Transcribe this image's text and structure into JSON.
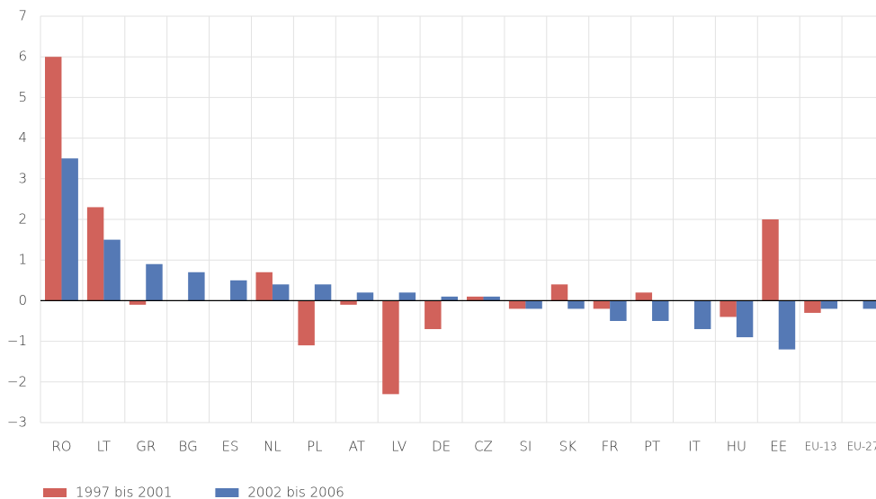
{
  "chart_data": {
    "type": "bar",
    "categories": [
      "RO",
      "LT",
      "GR",
      "BG",
      "ES",
      "NL",
      "PL",
      "AT",
      "LV",
      "DE",
      "CZ",
      "SI",
      "SK",
      "FR",
      "PT",
      "IT",
      "HU",
      "EE",
      "EU-13",
      "EU-27"
    ],
    "series": [
      {
        "name": "1997 bis 2001",
        "color": "#d1625b",
        "values": [
          6.0,
          2.3,
          -0.1,
          0,
          0,
          0.7,
          -1.1,
          -0.1,
          -2.3,
          -0.7,
          0.1,
          -0.2,
          0.4,
          -0.2,
          0.2,
          0,
          -0.4,
          2.0,
          -0.3,
          0
        ]
      },
      {
        "name": "2002 bis 2006",
        "color": "#5579b5",
        "values": [
          3.5,
          1.5,
          0.9,
          0.7,
          0.5,
          0.4,
          0.4,
          0.2,
          0.2,
          0.1,
          0.1,
          -0.2,
          -0.2,
          -0.5,
          -0.5,
          -0.7,
          -0.9,
          -1.2,
          -0.2,
          -0.2
        ]
      }
    ],
    "ylim": [
      -3,
      7
    ],
    "yticks": [
      {
        "value": -3,
        "label": "−3"
      },
      {
        "value": -2,
        "label": "−2"
      },
      {
        "value": -1,
        "label": "−1"
      },
      0,
      1,
      2,
      3,
      4,
      5,
      6,
      7
    ],
    "grid": true,
    "legend": "bottom-left"
  }
}
